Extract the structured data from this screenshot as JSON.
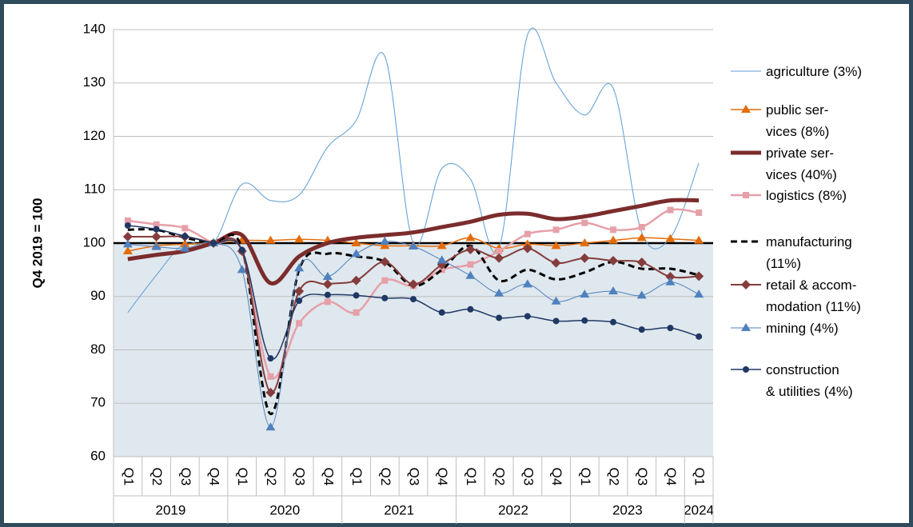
{
  "chart_data": {
    "type": "line",
    "y_label": "Q4 2019 = 100",
    "categories": [
      "Q1",
      "Q2",
      "Q3",
      "Q4",
      "Q1",
      "Q2",
      "Q3",
      "Q4",
      "Q1",
      "Q2",
      "Q3",
      "Q4",
      "Q1",
      "Q2",
      "Q3",
      "Q4",
      "Q1",
      "Q2",
      "Q3",
      "Q4",
      "Q1"
    ],
    "groups": [
      {
        "name": "2019",
        "count": 4
      },
      {
        "name": "2020",
        "count": 4
      },
      {
        "name": "2021",
        "count": 4
      },
      {
        "name": "2022",
        "count": 4
      },
      {
        "name": "2023",
        "count": 4
      },
      {
        "name": "2024",
        "count": 1
      }
    ],
    "ylim": [
      60,
      140
    ],
    "yticks": [
      60,
      70,
      80,
      90,
      100,
      110,
      120,
      130,
      140
    ],
    "grid": true,
    "reference_line": 100,
    "series": [
      {
        "name": "agriculture (3%)",
        "color": "#5b9bd5",
        "width": 1,
        "marker": "none",
        "values": [
          87,
          94,
          100,
          100,
          111,
          108,
          109,
          118,
          123,
          135,
          100,
          114,
          112,
          99,
          139,
          130,
          124,
          129,
          102,
          101,
          115
        ]
      },
      {
        "name": "public ser-\nvices (8%)",
        "color": "#e46c0a",
        "width": 1.5,
        "marker": "triangle",
        "values": [
          98.5,
          99.5,
          99.8,
          100,
          100.5,
          100.5,
          100.7,
          100.5,
          100,
          99.5,
          99.5,
          99.5,
          101,
          99,
          99.8,
          99.5,
          100,
          100.5,
          101,
          100.8,
          100.5
        ]
      },
      {
        "name": "private ser-\nvices (40%)",
        "color": "#7b2c2c",
        "width": 5,
        "marker": "none",
        "values": [
          97,
          97.8,
          98.5,
          100,
          101.5,
          92.5,
          97.5,
          100,
          101,
          101.5,
          102,
          103,
          104,
          105.3,
          105.5,
          104.5,
          105,
          106,
          107,
          108,
          108
        ]
      },
      {
        "name": "logistics (8%)",
        "color": "#e6a0a8",
        "width": 2.5,
        "marker": "square",
        "values": [
          104.2,
          103.5,
          102.8,
          100,
          98.5,
          75,
          85,
          89,
          87,
          93,
          92,
          95,
          96,
          98.5,
          101.7,
          102.5,
          103.8,
          102.5,
          103,
          106.2,
          105.7
        ]
      },
      {
        "name": "manufacturing\n(11%)",
        "color": "#000000",
        "width": 3,
        "dash": true,
        "marker": "none",
        "values": [
          102.5,
          102.5,
          101,
          100,
          99,
          68,
          95,
          98,
          97.5,
          96.5,
          92,
          95,
          99.5,
          93,
          95,
          93.2,
          94.5,
          96.5,
          95.2,
          95.2,
          94
        ]
      },
      {
        "name": "retail & accom-\nmodation (11%)",
        "color": "#843c3c",
        "width": 2,
        "marker": "diamond",
        "values": [
          101.2,
          101.2,
          101.2,
          100,
          98.5,
          72,
          91,
          92.3,
          93,
          96.5,
          92.3,
          96,
          98.8,
          97.2,
          99,
          96.3,
          97.2,
          96.7,
          96.4,
          93.7,
          93.8
        ]
      },
      {
        "name": "mining (4%)",
        "color": "#4f81bd",
        "width": 1,
        "marker": "triangle",
        "values": [
          99.8,
          99.3,
          99,
          100,
          95,
          65.5,
          95.3,
          93.7,
          98,
          100.3,
          99.4,
          96.8,
          93.9,
          90.6,
          92.3,
          89.1,
          90.4,
          91,
          90.2,
          92.7,
          90.4
        ]
      },
      {
        "name": "construction\n& utilities (4%)",
        "color": "#1f3864",
        "width": 1.5,
        "marker": "circle",
        "values": [
          103.3,
          102.6,
          101.3,
          100,
          98.7,
          78.4,
          89.2,
          90.3,
          90.2,
          89.7,
          89.5,
          87,
          87.6,
          86,
          86.3,
          85.4,
          85.5,
          85.2,
          83.8,
          84.1,
          82.5
        ]
      }
    ]
  }
}
